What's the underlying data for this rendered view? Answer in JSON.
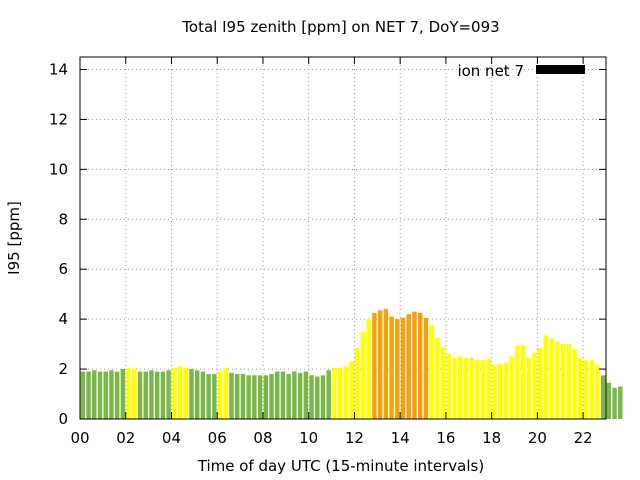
{
  "chart_data": {
    "type": "bar",
    "title": "Total I95 zenith [ppm] on NET 7, DoY=093",
    "xlabel": "Time of day UTC (15-minute intervals)",
    "ylabel": "I95 [ppm]",
    "xlim": [
      0,
      23
    ],
    "ylim": [
      0,
      14.5
    ],
    "yticks": [
      "0",
      "2",
      "4",
      "6",
      "8",
      "10",
      "12",
      "14"
    ],
    "xticks": [
      "00",
      "02",
      "04",
      "06",
      "08",
      "10",
      "12",
      "14",
      "16",
      "18",
      "20",
      "22"
    ],
    "grid": true,
    "legend": {
      "position": "top-right",
      "label": "ion net 7",
      "color": "#000000"
    },
    "colors": {
      "green": "#7ab648",
      "yellow": "#ffff00",
      "orange": "#f5a00f"
    },
    "bar_interval_hours": 0.25,
    "values": [
      1.9,
      1.9,
      1.95,
      1.9,
      1.9,
      1.95,
      1.9,
      2.0,
      2.05,
      2.0,
      1.9,
      1.9,
      1.95,
      1.9,
      1.9,
      1.95,
      2.05,
      2.1,
      2.05,
      2.0,
      1.95,
      1.9,
      1.8,
      1.8,
      1.9,
      2.05,
      1.85,
      1.8,
      1.8,
      1.75,
      1.75,
      1.75,
      1.75,
      1.8,
      1.9,
      1.9,
      1.8,
      1.9,
      1.85,
      1.9,
      1.75,
      1.7,
      1.75,
      1.95,
      2.05,
      2.05,
      2.1,
      2.3,
      2.85,
      3.5,
      4.0,
      4.25,
      4.35,
      4.4,
      4.1,
      4.0,
      4.05,
      4.2,
      4.3,
      4.25,
      4.05,
      3.75,
      3.25,
      2.9,
      2.6,
      2.45,
      2.5,
      2.45,
      2.45,
      2.35,
      2.35,
      2.4,
      2.15,
      2.2,
      2.25,
      2.5,
      2.95,
      2.95,
      2.45,
      2.65,
      2.85,
      3.35,
      3.2,
      3.1,
      3.0,
      3.0,
      2.8,
      2.45,
      2.35,
      2.35,
      2.15,
      1.75,
      1.45,
      1.25,
      1.3
    ],
    "bar_colors": [
      "green",
      "green",
      "green",
      "green",
      "green",
      "green",
      "green",
      "green",
      "yellow",
      "yellow",
      "green",
      "green",
      "green",
      "green",
      "green",
      "green",
      "yellow",
      "yellow",
      "yellow",
      "green",
      "green",
      "green",
      "green",
      "green",
      "yellow",
      "yellow",
      "green",
      "green",
      "green",
      "green",
      "green",
      "green",
      "green",
      "green",
      "green",
      "green",
      "green",
      "green",
      "green",
      "green",
      "green",
      "green",
      "green",
      "green",
      "yellow",
      "yellow",
      "yellow",
      "yellow",
      "yellow",
      "yellow",
      "yellow",
      "orange",
      "orange",
      "orange",
      "orange",
      "orange",
      "orange",
      "orange",
      "orange",
      "orange",
      "orange",
      "yellow",
      "yellow",
      "yellow",
      "yellow",
      "yellow",
      "yellow",
      "yellow",
      "yellow",
      "yellow",
      "yellow",
      "yellow",
      "yellow",
      "yellow",
      "yellow",
      "yellow",
      "yellow",
      "yellow",
      "yellow",
      "yellow",
      "yellow",
      "yellow",
      "yellow",
      "yellow",
      "yellow",
      "yellow",
      "yellow",
      "yellow",
      "yellow",
      "yellow",
      "yellow",
      "green",
      "green",
      "green",
      "green"
    ]
  }
}
